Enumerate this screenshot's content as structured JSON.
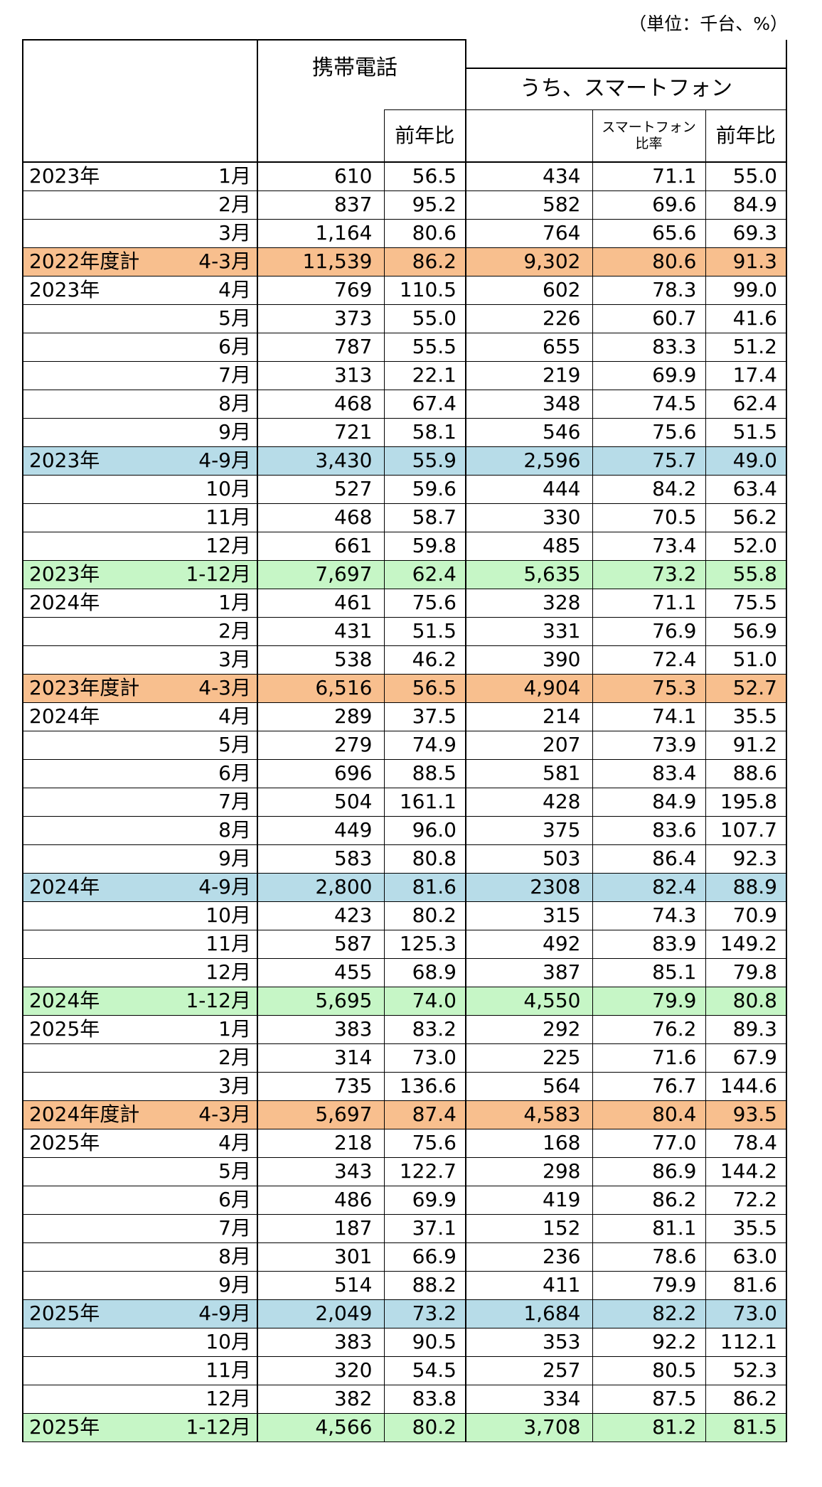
{
  "unit_note": "（単位：千台、%）",
  "headers": {
    "mobile": "携帯電話",
    "smartphone": "うち、スマートフォン",
    "yoy": "前年比",
    "smart_ratio": "スマートフォン比率",
    "yoy2": "前年比"
  },
  "colors": {
    "fiscal": "#f8bf8e",
    "half": "#b7dce8",
    "calendar": "#c6f6c6"
  },
  "rows": [
    {
      "period": "2023年",
      "month": "1月",
      "mobile": "610",
      "yoy": "56.5",
      "smart": "434",
      "ratio": "71.1",
      "smart_yoy": "55.0",
      "kind": ""
    },
    {
      "period": "",
      "month": "2月",
      "mobile": "837",
      "yoy": "95.2",
      "smart": "582",
      "ratio": "69.6",
      "smart_yoy": "84.9",
      "kind": ""
    },
    {
      "period": "",
      "month": "3月",
      "mobile": "1,164",
      "yoy": "80.6",
      "smart": "764",
      "ratio": "65.6",
      "smart_yoy": "69.3",
      "kind": ""
    },
    {
      "period": "2022年度計",
      "month": "4-3月",
      "mobile": "11,539",
      "yoy": "86.2",
      "smart": "9,302",
      "ratio": "80.6",
      "smart_yoy": "91.3",
      "kind": "orange"
    },
    {
      "period": "2023年",
      "month": "4月",
      "mobile": "769",
      "yoy": "110.5",
      "smart": "602",
      "ratio": "78.3",
      "smart_yoy": "99.0",
      "kind": ""
    },
    {
      "period": "",
      "month": "5月",
      "mobile": "373",
      "yoy": "55.0",
      "smart": "226",
      "ratio": "60.7",
      "smart_yoy": "41.6",
      "kind": ""
    },
    {
      "period": "",
      "month": "6月",
      "mobile": "787",
      "yoy": "55.5",
      "smart": "655",
      "ratio": "83.3",
      "smart_yoy": "51.2",
      "kind": ""
    },
    {
      "period": "",
      "month": "7月",
      "mobile": "313",
      "yoy": "22.1",
      "smart": "219",
      "ratio": "69.9",
      "smart_yoy": "17.4",
      "kind": ""
    },
    {
      "period": "",
      "month": "8月",
      "mobile": "468",
      "yoy": "67.4",
      "smart": "348",
      "ratio": "74.5",
      "smart_yoy": "62.4",
      "kind": ""
    },
    {
      "period": "",
      "month": "9月",
      "mobile": "721",
      "yoy": "58.1",
      "smart": "546",
      "ratio": "75.6",
      "smart_yoy": "51.5",
      "kind": ""
    },
    {
      "period": "2023年",
      "month": "4-9月",
      "mobile": "3,430",
      "yoy": "55.9",
      "smart": "2,596",
      "ratio": "75.7",
      "smart_yoy": "49.0",
      "kind": "blue"
    },
    {
      "period": "",
      "month": "10月",
      "mobile": "527",
      "yoy": "59.6",
      "smart": "444",
      "ratio": "84.2",
      "smart_yoy": "63.4",
      "kind": ""
    },
    {
      "period": "",
      "month": "11月",
      "mobile": "468",
      "yoy": "58.7",
      "smart": "330",
      "ratio": "70.5",
      "smart_yoy": "56.2",
      "kind": ""
    },
    {
      "period": "",
      "month": "12月",
      "mobile": "661",
      "yoy": "59.8",
      "smart": "485",
      "ratio": "73.4",
      "smart_yoy": "52.0",
      "kind": ""
    },
    {
      "period": "2023年",
      "month": "1-12月",
      "mobile": "7,697",
      "yoy": "62.4",
      "smart": "5,635",
      "ratio": "73.2",
      "smart_yoy": "55.8",
      "kind": "green"
    },
    {
      "period": "2024年",
      "month": "1月",
      "mobile": "461",
      "yoy": "75.6",
      "smart": "328",
      "ratio": "71.1",
      "smart_yoy": "75.5",
      "kind": ""
    },
    {
      "period": "",
      "month": "2月",
      "mobile": "431",
      "yoy": "51.5",
      "smart": "331",
      "ratio": "76.9",
      "smart_yoy": "56.9",
      "kind": ""
    },
    {
      "period": "",
      "month": "3月",
      "mobile": "538",
      "yoy": "46.2",
      "smart": "390",
      "ratio": "72.4",
      "smart_yoy": "51.0",
      "kind": ""
    },
    {
      "period": "2023年度計",
      "month": "4-3月",
      "mobile": "6,516",
      "yoy": "56.5",
      "smart": "4,904",
      "ratio": "75.3",
      "smart_yoy": "52.7",
      "kind": "orange"
    },
    {
      "period": "2024年",
      "month": "4月",
      "mobile": "289",
      "yoy": "37.5",
      "smart": "214",
      "ratio": "74.1",
      "smart_yoy": "35.5",
      "kind": ""
    },
    {
      "period": "",
      "month": "5月",
      "mobile": "279",
      "yoy": "74.9",
      "smart": "207",
      "ratio": "73.9",
      "smart_yoy": "91.2",
      "kind": ""
    },
    {
      "period": "",
      "month": "6月",
      "mobile": "696",
      "yoy": "88.5",
      "smart": "581",
      "ratio": "83.4",
      "smart_yoy": "88.6",
      "kind": ""
    },
    {
      "period": "",
      "month": "7月",
      "mobile": "504",
      "yoy": "161.1",
      "smart": "428",
      "ratio": "84.9",
      "smart_yoy": "195.8",
      "kind": ""
    },
    {
      "period": "",
      "month": "8月",
      "mobile": "449",
      "yoy": "96.0",
      "smart": "375",
      "ratio": "83.6",
      "smart_yoy": "107.7",
      "kind": ""
    },
    {
      "period": "",
      "month": "9月",
      "mobile": "583",
      "yoy": "80.8",
      "smart": "503",
      "ratio": "86.4",
      "smart_yoy": "92.3",
      "kind": ""
    },
    {
      "period": "2024年",
      "month": "4-9月",
      "mobile": "2,800",
      "yoy": "81.6",
      "smart": "2308",
      "ratio": "82.4",
      "smart_yoy": "88.9",
      "kind": "blue"
    },
    {
      "period": "",
      "month": "10月",
      "mobile": "423",
      "yoy": "80.2",
      "smart": "315",
      "ratio": "74.3",
      "smart_yoy": "70.9",
      "kind": ""
    },
    {
      "period": "",
      "month": "11月",
      "mobile": "587",
      "yoy": "125.3",
      "smart": "492",
      "ratio": "83.9",
      "smart_yoy": "149.2",
      "kind": ""
    },
    {
      "period": "",
      "month": "12月",
      "mobile": "455",
      "yoy": "68.9",
      "smart": "387",
      "ratio": "85.1",
      "smart_yoy": "79.8",
      "kind": ""
    },
    {
      "period": "2024年",
      "month": "1-12月",
      "mobile": "5,695",
      "yoy": "74.0",
      "smart": "4,550",
      "ratio": "79.9",
      "smart_yoy": "80.8",
      "kind": "green"
    },
    {
      "period": "2025年",
      "month": "1月",
      "mobile": "383",
      "yoy": "83.2",
      "smart": "292",
      "ratio": "76.2",
      "smart_yoy": "89.3",
      "kind": ""
    },
    {
      "period": "",
      "month": "2月",
      "mobile": "314",
      "yoy": "73.0",
      "smart": "225",
      "ratio": "71.6",
      "smart_yoy": "67.9",
      "kind": ""
    },
    {
      "period": "",
      "month": "3月",
      "mobile": "735",
      "yoy": "136.6",
      "smart": "564",
      "ratio": "76.7",
      "smart_yoy": "144.6",
      "kind": ""
    },
    {
      "period": "2024年度計",
      "month": "4-3月",
      "mobile": "5,697",
      "yoy": "87.4",
      "smart": "4,583",
      "ratio": "80.4",
      "smart_yoy": "93.5",
      "kind": "orange"
    },
    {
      "period": "2025年",
      "month": "4月",
      "mobile": "218",
      "yoy": "75.6",
      "smart": "168",
      "ratio": "77.0",
      "smart_yoy": "78.4",
      "kind": ""
    },
    {
      "period": "",
      "month": "5月",
      "mobile": "343",
      "yoy": "122.7",
      "smart": "298",
      "ratio": "86.9",
      "smart_yoy": "144.2",
      "kind": ""
    },
    {
      "period": "",
      "month": "6月",
      "mobile": "486",
      "yoy": "69.9",
      "smart": "419",
      "ratio": "86.2",
      "smart_yoy": "72.2",
      "kind": ""
    },
    {
      "period": "",
      "month": "7月",
      "mobile": "187",
      "yoy": "37.1",
      "smart": "152",
      "ratio": "81.1",
      "smart_yoy": "35.5",
      "kind": ""
    },
    {
      "period": "",
      "month": "8月",
      "mobile": "301",
      "yoy": "66.9",
      "smart": "236",
      "ratio": "78.6",
      "smart_yoy": "63.0",
      "kind": ""
    },
    {
      "period": "",
      "month": "9月",
      "mobile": "514",
      "yoy": "88.2",
      "smart": "411",
      "ratio": "79.9",
      "smart_yoy": "81.6",
      "kind": ""
    },
    {
      "period": "2025年",
      "month": "4-9月",
      "mobile": "2,049",
      "yoy": "73.2",
      "smart": "1,684",
      "ratio": "82.2",
      "smart_yoy": "73.0",
      "kind": "blue"
    },
    {
      "period": "",
      "month": "10月",
      "mobile": "383",
      "yoy": "90.5",
      "smart": "353",
      "ratio": "92.2",
      "smart_yoy": "112.1",
      "kind": ""
    },
    {
      "period": "",
      "month": "11月",
      "mobile": "320",
      "yoy": "54.5",
      "smart": "257",
      "ratio": "80.5",
      "smart_yoy": "52.3",
      "kind": ""
    },
    {
      "period": "",
      "month": "12月",
      "mobile": "382",
      "yoy": "83.8",
      "smart": "334",
      "ratio": "87.5",
      "smart_yoy": "86.2",
      "kind": ""
    },
    {
      "period": "2025年",
      "month": "1-12月",
      "mobile": "4,566",
      "yoy": "80.2",
      "smart": "3,708",
      "ratio": "81.2",
      "smart_yoy": "81.5",
      "kind": "green"
    }
  ]
}
